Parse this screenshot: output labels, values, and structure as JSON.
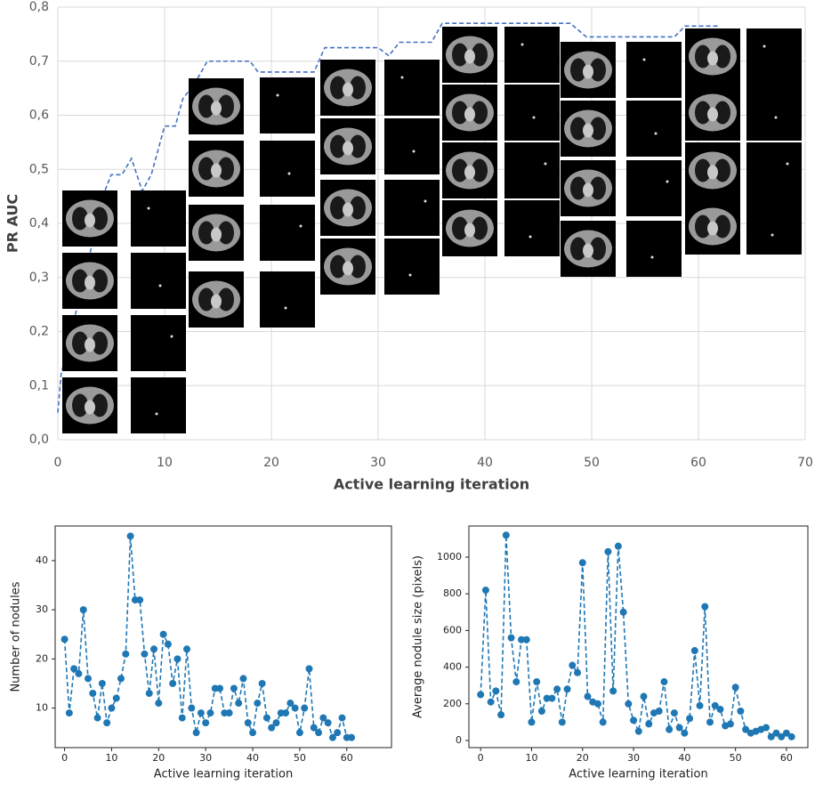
{
  "chart_data": [
    {
      "type": "line",
      "ylabel": "PR AUC",
      "xlabel": "Active learning iteration",
      "x": [
        0,
        0.3,
        4.4,
        5,
        6,
        6.9,
        7.9,
        8.75,
        10,
        11,
        11.7,
        13,
        14,
        18,
        18.75,
        24,
        25,
        30,
        31,
        32,
        35,
        36,
        48,
        49.5,
        57.75,
        58.75,
        62
      ],
      "series": [
        {
          "color": "#4472c4",
          "values": [
            0.05,
            0.12,
            0.46,
            0.49,
            0.49,
            0.52,
            0.46,
            0.49,
            0.58,
            0.58,
            0.63,
            0.665,
            0.7,
            0.7,
            0.68,
            0.68,
            0.725,
            0.725,
            0.71,
            0.735,
            0.735,
            0.77,
            0.77,
            0.745,
            0.745,
            0.765,
            0.765
          ]
        }
      ],
      "xlim": [
        0,
        70
      ],
      "xticks": [
        0,
        10,
        20,
        30,
        40,
        50,
        60,
        70
      ],
      "ylim": [
        0,
        0.8
      ],
      "yticks": [
        {
          "value": 0,
          "label": "0,0"
        },
        {
          "value": 0.1,
          "label": "0,1"
        },
        {
          "value": 0.2,
          "label": "0,2"
        },
        {
          "value": 0.3,
          "label": "0,3"
        },
        {
          "value": 0.4,
          "label": "0,4"
        },
        {
          "value": 0.5,
          "label": "0,5"
        },
        {
          "value": 0.6,
          "label": "0,6"
        },
        {
          "value": 0.7,
          "label": "0,7"
        },
        {
          "value": 0.8,
          "label": "0,8"
        }
      ],
      "grid": true,
      "dashed": true,
      "markers": false
    },
    {
      "type": "line",
      "ylabel": "Number of nodules",
      "xlabel": "Active learning iteration",
      "x": [
        0,
        1,
        2,
        3,
        4,
        5,
        6,
        7,
        8,
        9,
        10,
        11,
        12,
        13,
        14,
        15,
        16,
        17,
        18,
        19,
        20,
        21,
        22,
        23,
        24,
        25,
        26,
        27,
        28,
        29,
        30,
        31,
        32,
        33,
        34,
        35,
        36,
        37,
        38,
        39,
        40,
        41,
        42,
        43,
        44,
        45,
        46,
        47,
        48,
        49,
        50,
        51,
        52,
        53,
        54,
        55,
        56,
        57,
        58,
        59,
        60,
        61
      ],
      "series": [
        {
          "color": "#1f77b4",
          "values": [
            24,
            9,
            18,
            17,
            30,
            16,
            13,
            8,
            15,
            7,
            10,
            12,
            16,
            21,
            45,
            32,
            32,
            21,
            13,
            22,
            11,
            25,
            23,
            15,
            20,
            8,
            22,
            10,
            5,
            9,
            7,
            9,
            14,
            14,
            9,
            9,
            14,
            11,
            16,
            7,
            5,
            11,
            15,
            8,
            6,
            7,
            9,
            9,
            11,
            10,
            5,
            10,
            18,
            6,
            5,
            8,
            7,
            4,
            5,
            8,
            4,
            4
          ]
        }
      ],
      "xlim": [
        -2,
        69.5
      ],
      "xticks": [
        0,
        10,
        20,
        30,
        40,
        50,
        60
      ],
      "ylim": [
        1.95,
        47.05
      ],
      "yticks": [
        10,
        20,
        30,
        40
      ],
      "grid": false,
      "dashed": true,
      "markers": true
    },
    {
      "type": "line",
      "ylabel": "Average nodule size (pixels)",
      "xlabel": "Active learning iteration",
      "x": [
        0,
        1,
        2,
        3,
        4,
        5,
        6,
        7,
        8,
        9,
        10,
        11,
        12,
        13,
        14,
        15,
        16,
        17,
        18,
        19,
        20,
        21,
        22,
        23,
        24,
        25,
        26,
        27,
        28,
        29,
        30,
        31,
        32,
        33,
        34,
        35,
        36,
        37,
        38,
        39,
        40,
        41,
        42,
        43,
        44,
        45,
        46,
        47,
        48,
        49,
        50,
        51,
        52,
        53,
        54,
        55,
        56,
        57,
        58,
        59,
        60,
        61
      ],
      "series": [
        {
          "color": "#1f77b4",
          "values": [
            250,
            820,
            210,
            270,
            140,
            1120,
            560,
            320,
            550,
            550,
            100,
            320,
            160,
            230,
            230,
            280,
            100,
            280,
            410,
            370,
            970,
            240,
            210,
            200,
            100,
            1030,
            270,
            1060,
            700,
            200,
            110,
            50,
            240,
            90,
            150,
            160,
            320,
            60,
            150,
            70,
            40,
            120,
            490,
            190,
            730,
            100,
            190,
            170,
            80,
            90,
            290,
            160,
            60,
            40,
            50,
            60,
            70,
            20,
            40,
            20,
            40,
            20
          ]
        }
      ],
      "xlim": [
        -2.3,
        64.2
      ],
      "xticks": [
        0,
        10,
        20,
        30,
        40,
        50,
        60
      ],
      "ylim": [
        -39,
        1170
      ],
      "yticks": [
        0,
        200,
        400,
        600,
        800,
        1000
      ],
      "grid": false,
      "dashed": true,
      "markers": true
    }
  ]
}
